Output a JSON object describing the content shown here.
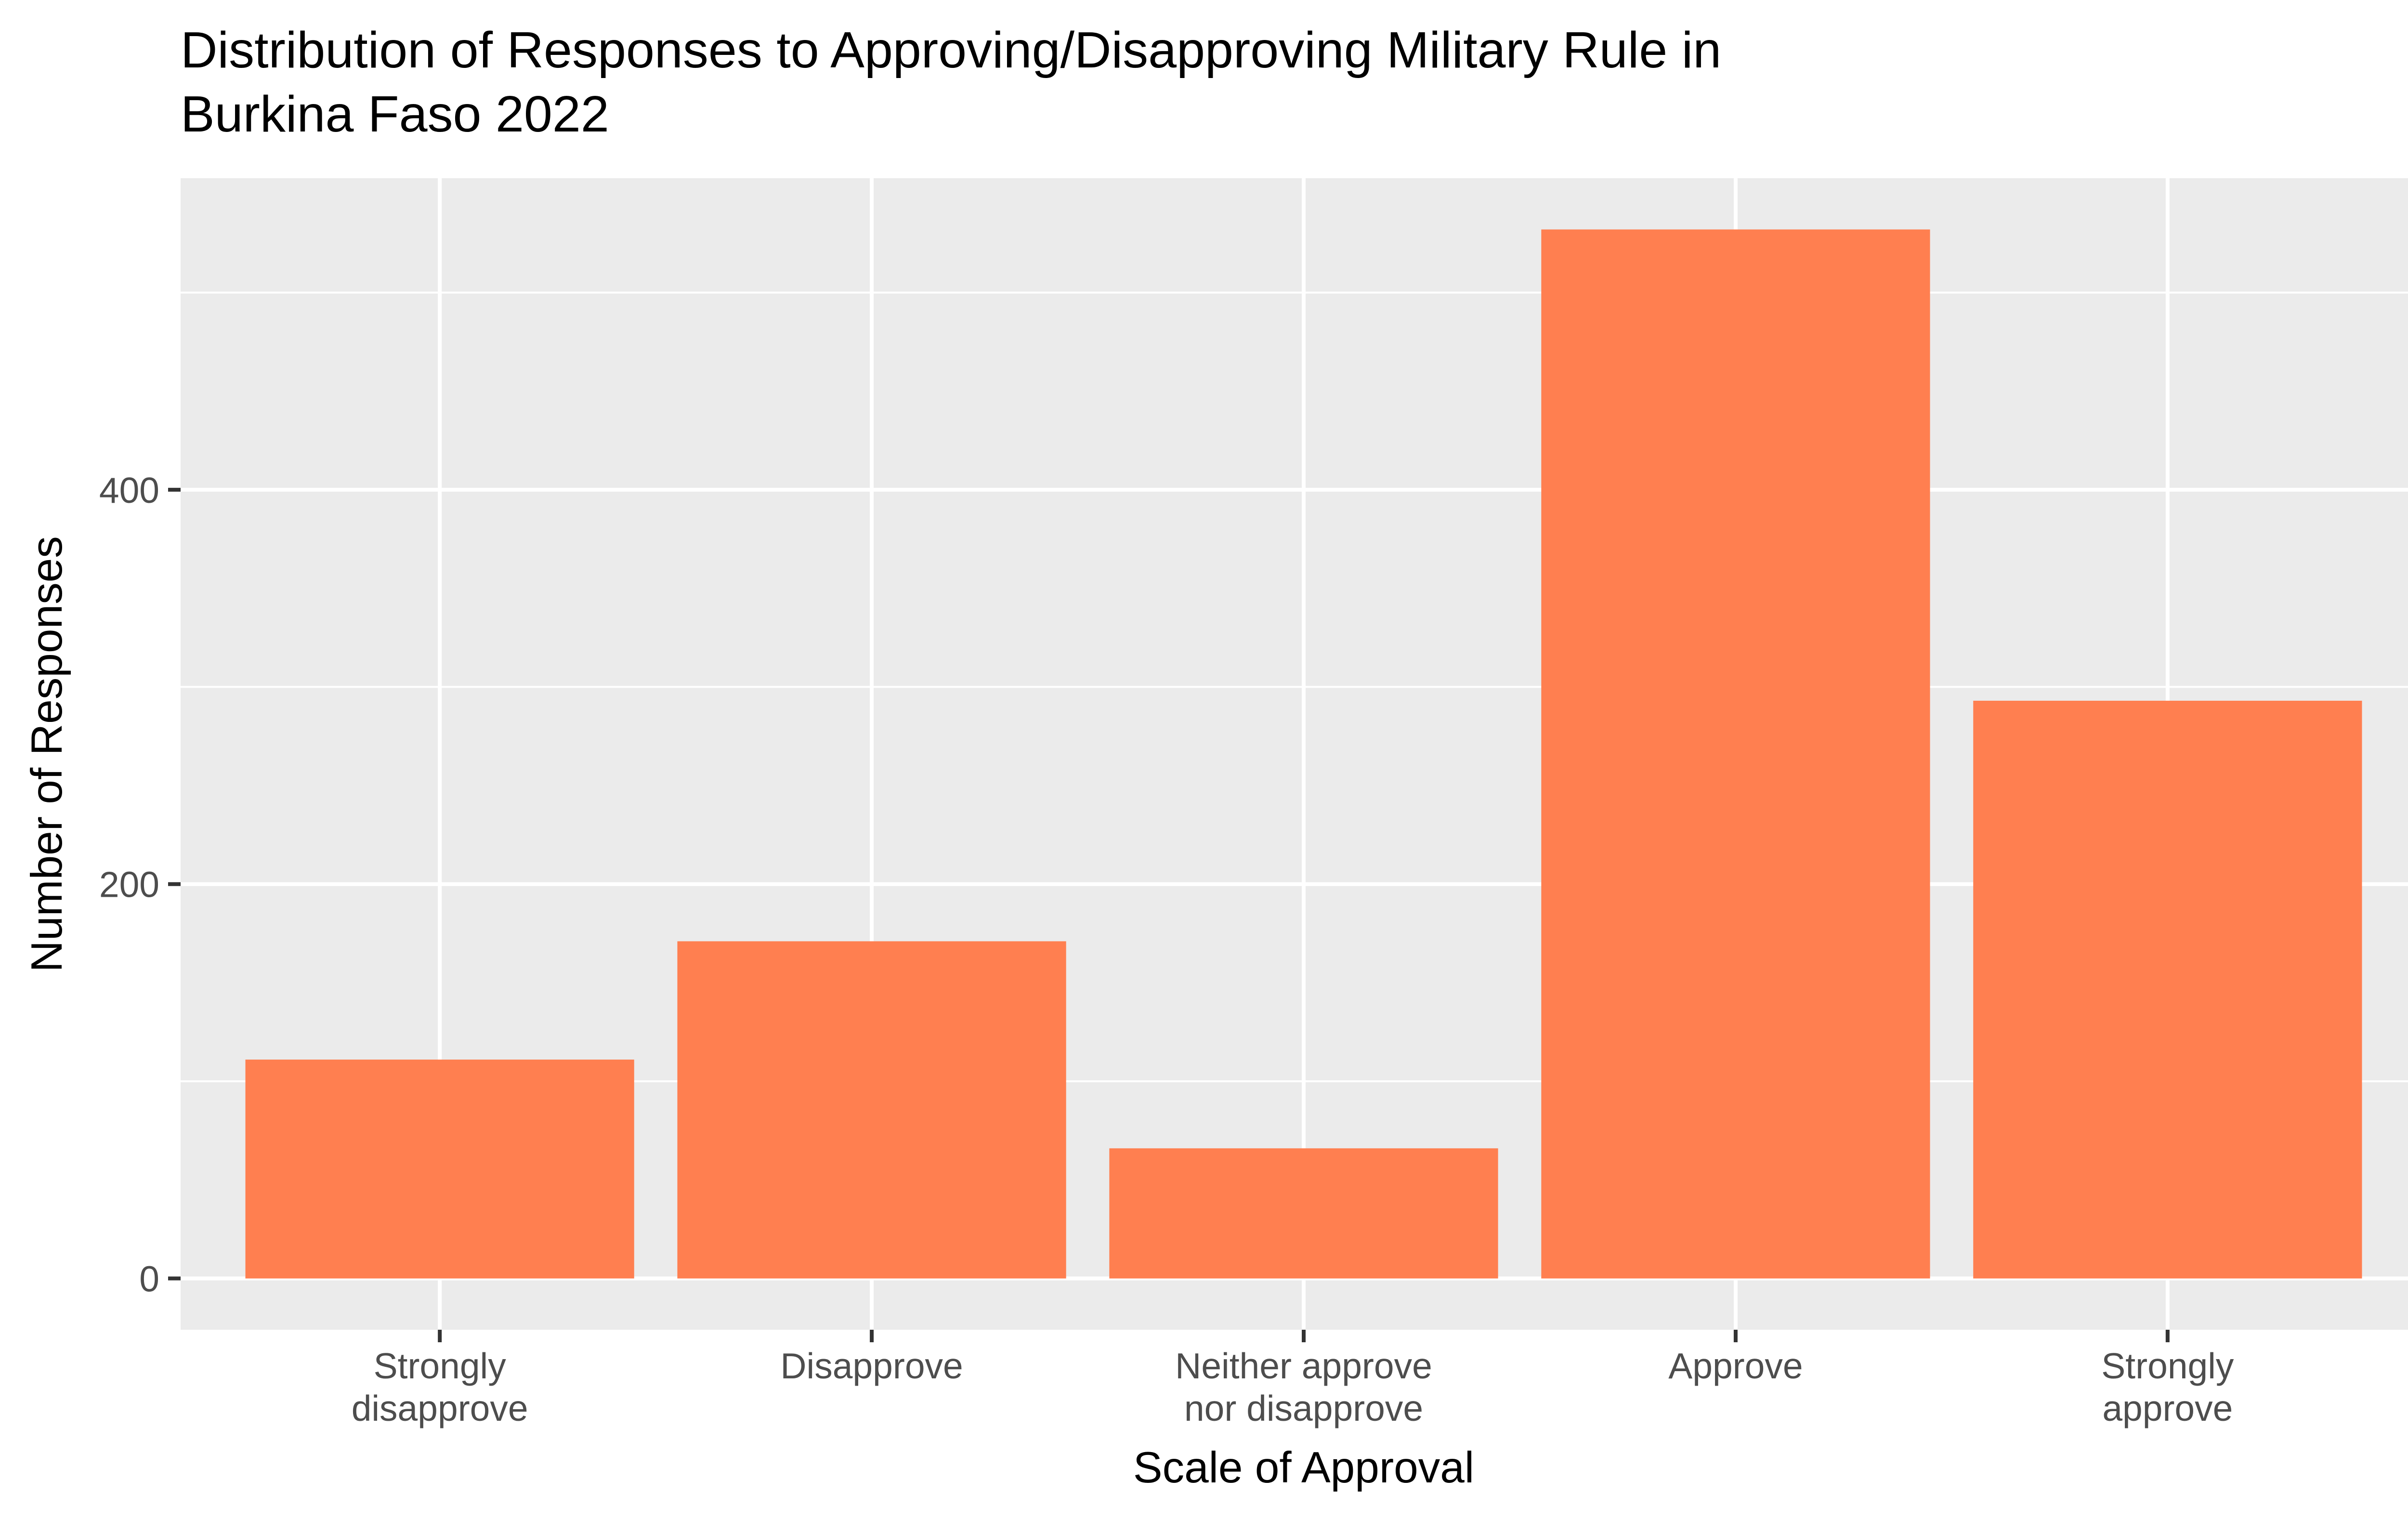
{
  "chart_data": {
    "type": "bar",
    "title": [
      "Distribution of Responses to Approving/Disapproving Military Rule in",
      "Burkina Faso 2022"
    ],
    "xlabel": "Scale of Approval",
    "ylabel": "Number of Responses",
    "categories": [
      [
        "Strongly",
        "disapprove"
      ],
      [
        "Disapprove"
      ],
      [
        "Neither approve",
        "nor disapprove"
      ],
      [
        "Approve"
      ],
      [
        "Strongly",
        "approve"
      ]
    ],
    "values": [
      111,
      171,
      66,
      532,
      293
    ],
    "ylim": [
      -26,
      558
    ],
    "yticks": [
      0,
      200,
      400
    ],
    "yticks_minor": [
      100,
      300,
      500
    ],
    "grid": true,
    "colors": {
      "bar": "#ff7f50",
      "panel": "#ebebeb",
      "grid": "#ffffff",
      "tick": "#333333"
    }
  }
}
